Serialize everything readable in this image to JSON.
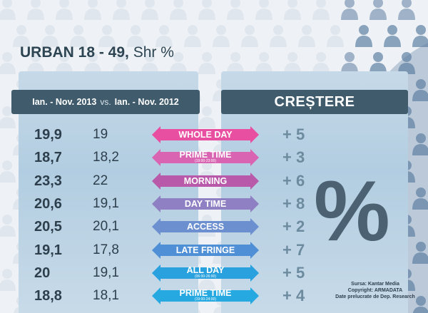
{
  "title": {
    "bold": "URBAN 18 - 49,",
    "rest": "Shr %"
  },
  "header": {
    "period_2013": "Ian. - Nov. 2013",
    "vs": "vs.",
    "period_2012": "Ian. - Nov. 2012",
    "growth": "CREȘTERE"
  },
  "rows": [
    {
      "v2013": "19,9",
      "v2012": "19",
      "daypart": "WHOLE DAY",
      "sub": "",
      "growth": "+ 5",
      "color": "#e94fa0"
    },
    {
      "v2013": "18,7",
      "v2012": "18,2",
      "daypart": "PRIME TIME",
      "sub": "(19:00-23:00)",
      "growth": "+ 3",
      "color": "#d864b2"
    },
    {
      "v2013": "23,3",
      "v2012": "22",
      "daypart": "MORNING",
      "sub": "",
      "growth": "+ 6",
      "color": "#b85aa9"
    },
    {
      "v2013": "20,6",
      "v2012": "19,1",
      "daypart": "DAY TIME",
      "sub": "",
      "growth": "+ 8",
      "color": "#8f80c3"
    },
    {
      "v2013": "20,5",
      "v2012": "20,1",
      "daypart": "ACCESS",
      "sub": "",
      "growth": "+ 2",
      "color": "#6c8fcf"
    },
    {
      "v2013": "19,1",
      "v2012": "17,8",
      "daypart": "LATE FRINGE",
      "sub": "",
      "growth": "+ 7",
      "color": "#4f8fd6"
    },
    {
      "v2013": "20",
      "v2012": "19,1",
      "daypart": "ALL DAY",
      "sub": "(06:00-26:00)",
      "growth": "+ 5",
      "color": "#28a1de"
    },
    {
      "v2013": "18,8",
      "v2012": "18,1",
      "daypart": "PRIME TIME",
      "sub": "(19:00-24:00)",
      "growth": "+ 4",
      "color": "#26a9e0"
    }
  ],
  "percent_symbol": "%",
  "source": {
    "line1": "Sursa: Kantar Media",
    "line2": "Copyright: ARMADATA",
    "line3": "Date prelucrate de Dep. Research"
  }
}
